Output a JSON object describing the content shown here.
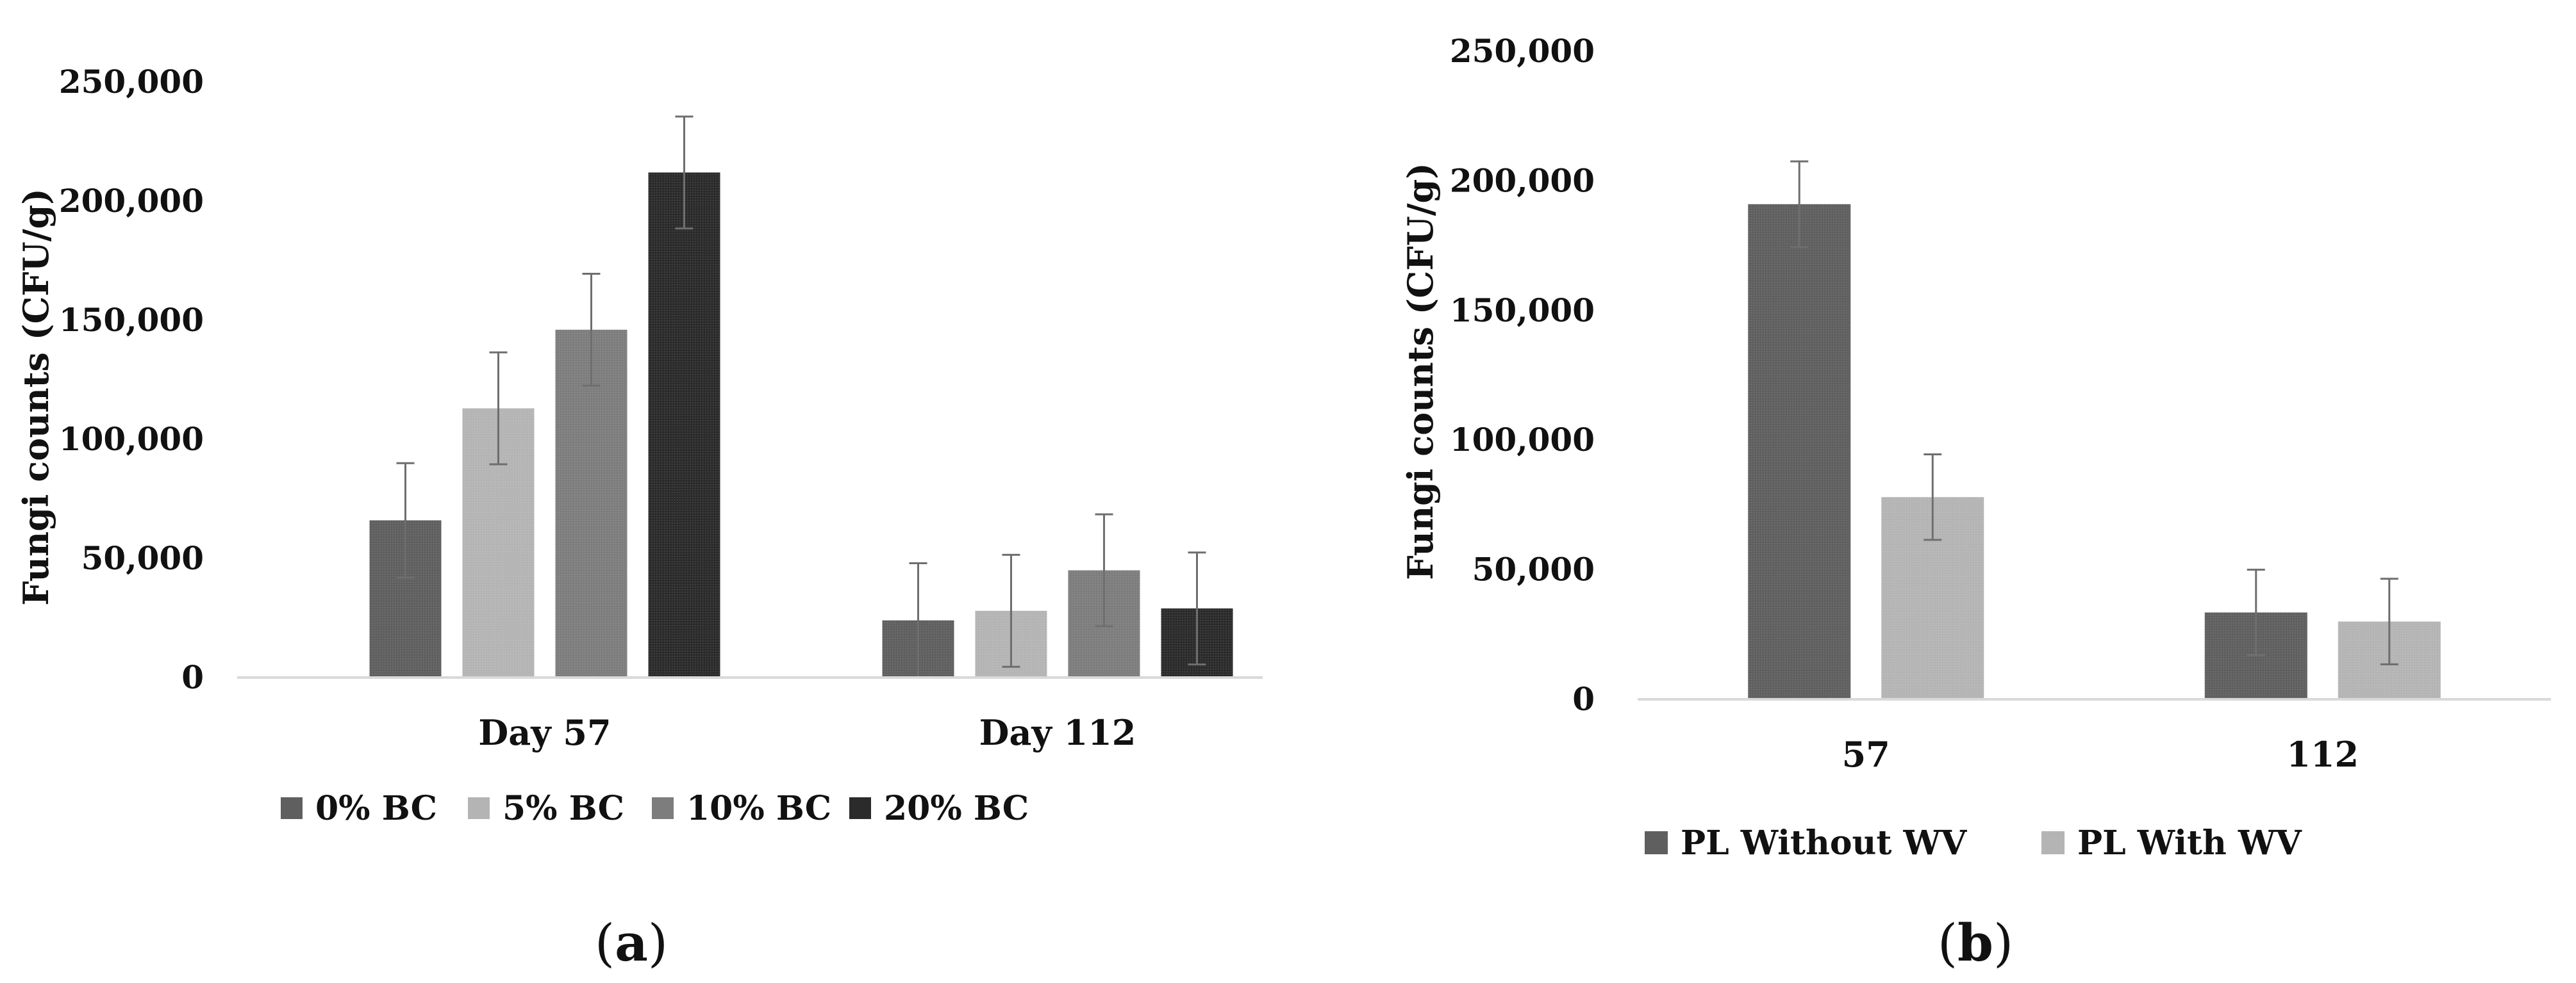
{
  "chart_data": [
    {
      "type": "bar",
      "panel_label": "a",
      "title": "",
      "xlabel": "",
      "ylabel": "Fungi counts (CFU/g)",
      "ylim": [
        0,
        250000
      ],
      "yticks": [
        0,
        50000,
        100000,
        150000,
        200000,
        250000
      ],
      "ytick_labels": [
        "0",
        "50,000",
        "100,000",
        "150,000",
        "200,000",
        "250,000"
      ],
      "categories": [
        "Day 57",
        "Day 112"
      ],
      "grid": false,
      "legend_position": "bottom",
      "series": [
        {
          "name": "0% BC",
          "color": "#5f5f5f",
          "values": [
            66000,
            24000
          ],
          "errors": [
            24000,
            24000
          ]
        },
        {
          "name": "5% BC",
          "color": "#b4b4b4",
          "values": [
            113000,
            28000
          ],
          "errors": [
            23500,
            23500
          ]
        },
        {
          "name": "10% BC",
          "color": "#7d7d7d",
          "values": [
            146000,
            45000
          ],
          "errors": [
            23500,
            23500
          ]
        },
        {
          "name": "20% BC",
          "color": "#2b2b2b",
          "values": [
            212000,
            29000
          ],
          "errors": [
            23500,
            23500
          ]
        }
      ]
    },
    {
      "type": "bar",
      "panel_label": "b",
      "title": "",
      "xlabel": "",
      "ylabel": "Fungi counts (CFU/g)",
      "ylim": [
        0,
        250000
      ],
      "yticks": [
        0,
        50000,
        100000,
        150000,
        200000,
        250000
      ],
      "ytick_labels": [
        "0",
        "50,000",
        "100,000",
        "150,000",
        "200,000",
        "250,000"
      ],
      "categories": [
        "57",
        "112"
      ],
      "grid": false,
      "legend_position": "bottom",
      "series": [
        {
          "name": "PL Without WV",
          "color": "#5f5f5f",
          "values": [
            191000,
            33500
          ],
          "errors": [
            16500,
            16500
          ]
        },
        {
          "name": "PL With WV",
          "color": "#b4b4b4",
          "values": [
            78000,
            30000
          ],
          "errors": [
            16500,
            16500
          ]
        }
      ]
    }
  ]
}
